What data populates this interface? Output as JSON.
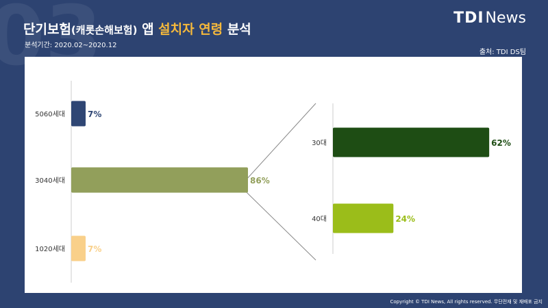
{
  "header": {
    "title_main": "단기보험",
    "title_paren": "(캐롯손해보험)",
    "title_app": "앱",
    "title_highlight": "설치자 연령",
    "title_end": "분석",
    "period": "분석기간: 2020.02~2020.12",
    "source": "출처: TDI DS팀",
    "watermark": "03"
  },
  "logo": {
    "brand": "TDI",
    "suffix": "News"
  },
  "footer": {
    "copyright": "Copyright © TDI News, All rights reserved. 무단전재 및 재배포 금지"
  },
  "colors": {
    "background": "#2d4371",
    "highlight": "#f6b93b",
    "bar_5060": "#2f4674",
    "bar_3040": "#929f5b",
    "bar_1020": "#f9d08a",
    "bar_30": "#1e4d14",
    "bar_40": "#9bbd1a",
    "connector": "#888888",
    "axis": "#cccccc"
  },
  "chart_data": [
    {
      "type": "bar",
      "orientation": "horizontal",
      "categories": [
        "5060세대",
        "3040세대",
        "1020세대"
      ],
      "values": [
        7,
        86,
        7
      ],
      "value_labels": [
        "7%",
        "86%",
        "7%"
      ],
      "xlim": [
        0,
        100
      ],
      "grid": false
    },
    {
      "type": "bar",
      "orientation": "horizontal",
      "categories": [
        "30대",
        "40대"
      ],
      "values": [
        62,
        24
      ],
      "value_labels": [
        "62%",
        "24%"
      ],
      "xlim": [
        0,
        100
      ],
      "grid": false,
      "breakdown_of": "3040세대"
    }
  ]
}
